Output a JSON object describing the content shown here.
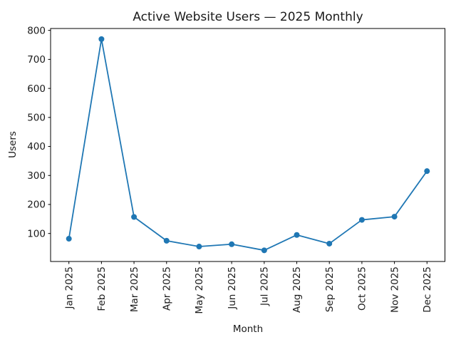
{
  "chart_data": {
    "type": "line",
    "title": "Active Website Users — 2025 Monthly",
    "xlabel": "Month",
    "ylabel": "Users",
    "categories": [
      "Jan 2025",
      "Feb 2025",
      "Mar 2025",
      "Apr 2025",
      "May 2025",
      "Jun 2025",
      "Jul 2025",
      "Aug 2025",
      "Sep 2025",
      "Oct 2025",
      "Nov 2025",
      "Dec 2025"
    ],
    "series": [
      {
        "name": "Users",
        "values": [
          82,
          770,
          157,
          75,
          55,
          63,
          42,
          95,
          65,
          147,
          158,
          315
        ]
      }
    ],
    "yticks": [
      100,
      200,
      300,
      400,
      500,
      600,
      700,
      800
    ],
    "ylim": [
      3.5,
      806.5
    ],
    "grid": false,
    "legend": false,
    "line_color": "#1f77b4",
    "marker": "circle",
    "background_color": "#ffffff",
    "text_color": "#1a1a1a"
  }
}
